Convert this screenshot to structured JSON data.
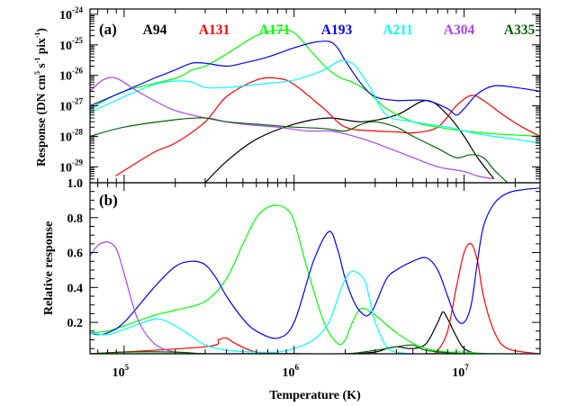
{
  "figure": {
    "xlabel": "Temperature (K)",
    "x_ticks": [
      {
        "base": "10",
        "exp": "5",
        "value": 100000
      },
      {
        "base": "10",
        "exp": "6",
        "value": 1000000
      },
      {
        "base": "10",
        "exp": "7",
        "value": 10000000
      }
    ],
    "xlim": [
      63000,
      28000000
    ],
    "x_scale": "log",
    "colors": {
      "A94": "#000000",
      "A131": "#ff0000",
      "A171": "#00ff00",
      "A193": "#0000ff",
      "A211": "#00ffff",
      "A304": "#aa44ee",
      "A335": "#006400"
    }
  },
  "chart_data": [
    {
      "type": "line",
      "panel_label": "(a)",
      "ylabel_main": "Response (DN cm",
      "ylabel_sup1": "5",
      "ylabel_mid": " s",
      "ylabel_sup2": "-1",
      "ylabel_end": " pix",
      "ylabel_sup3": "-1",
      "ylabel_close": ")",
      "y_scale": "log",
      "ylim": [
        3e-30,
        1.5e-24
      ],
      "y_ticks": [
        {
          "base": "10",
          "exp": "-24",
          "value": 1e-24
        },
        {
          "base": "10",
          "exp": "-25",
          "value": 1e-25
        },
        {
          "base": "10",
          "exp": "-26",
          "value": 1e-26
        },
        {
          "base": "10",
          "exp": "-27",
          "value": 1e-27
        },
        {
          "base": "10",
          "exp": "-28",
          "value": 1e-28
        },
        {
          "base": "10",
          "exp": "-29",
          "value": 1e-29
        }
      ],
      "legend_position": "top",
      "series": [
        {
          "name": "A94",
          "x": [
            300000,
            400000,
            600000,
            1000000,
            1600000,
            2500000,
            4000000,
            6000000,
            8000000,
            10000000,
            12000000,
            15000000
          ],
          "y": [
            3e-30,
            1.5e-29,
            8e-29,
            2.5e-28,
            4e-28,
            3e-28,
            5e-28,
            1.5e-27,
            5e-28,
            1e-28,
            2e-29,
            4e-30
          ]
        },
        {
          "name": "A131",
          "x": [
            89000,
            150000,
            200000,
            300000,
            400000,
            600000,
            800000,
            1000000,
            1500000,
            2000000,
            3000000,
            4000000,
            5000000,
            7000000,
            9000000,
            11000000,
            13000000,
            17000000,
            22000000,
            28000000
          ],
          "y": [
            5e-30,
            3e-29,
            6e-29,
            3e-28,
            2e-27,
            7e-27,
            8e-27,
            5e-27,
            8e-28,
            2e-28,
            1.5e-28,
            1.4e-28,
            1.3e-28,
            2e-28,
            1e-27,
            2.2e-27,
            1.5e-27,
            5e-28,
            2e-28,
            1e-28
          ]
        },
        {
          "name": "A171",
          "x": [
            63000,
            100000,
            200000,
            250000,
            300000,
            400000,
            600000,
            800000,
            1000000,
            1300000,
            1600000,
            1900000,
            2200000,
            2700000,
            3500000,
            5000000,
            7000000,
            10000000,
            15000000,
            28000000
          ],
          "y": [
            8e-28,
            3e-27,
            8e-27,
            1.5e-26,
            2e-26,
            5e-26,
            2e-25,
            3e-25,
            2.5e-25,
            5e-26,
            1.5e-26,
            8e-27,
            6e-27,
            3e-27,
            8e-28,
            3e-28,
            2e-28,
            1.5e-28,
            1.2e-28,
            1e-28
          ]
        },
        {
          "name": "A193",
          "x": [
            63000,
            100000,
            150000,
            200000,
            250000,
            300000,
            400000,
            500000,
            700000,
            1000000,
            1300000,
            1600000,
            1800000,
            2000000,
            2500000,
            3000000,
            4000000,
            6000000,
            8000000,
            9000000,
            10000000,
            12000000,
            15000000,
            20000000,
            28000000
          ],
          "y": [
            1e-27,
            3e-27,
            8e-27,
            1.5e-26,
            2.5e-26,
            2.5e-26,
            2e-26,
            2.5e-26,
            4e-26,
            8e-26,
            1.2e-25,
            1.3e-25,
            8e-26,
            3e-26,
            5e-27,
            2e-27,
            1.5e-27,
            1.5e-27,
            8e-28,
            5e-28,
            8e-28,
            2.5e-27,
            4.5e-27,
            4e-27,
            3e-27
          ]
        },
        {
          "name": "A211",
          "x": [
            63000,
            100000,
            150000,
            200000,
            250000,
            300000,
            400000,
            600000,
            1000000,
            1500000,
            1800000,
            2000000,
            2300000,
            2800000,
            3500000,
            5000000,
            8000000,
            12000000,
            20000000,
            28000000
          ],
          "y": [
            6e-28,
            2e-27,
            5e-27,
            6.5e-27,
            6e-27,
            4e-27,
            4e-27,
            5e-27,
            7e-27,
            1.5e-26,
            2.8e-26,
            3e-26,
            2e-26,
            4e-27,
            5e-28,
            3e-28,
            2e-28,
            1.2e-28,
            8e-29,
            6e-29
          ]
        },
        {
          "name": "A304",
          "x": [
            63000,
            75000,
            90000,
            120000,
            150000,
            200000,
            300000,
            500000,
            800000,
            1200000,
            1600000,
            2000000,
            3000000,
            5000000,
            7000000,
            10000000,
            12000000,
            15000000
          ],
          "y": [
            3e-27,
            7e-27,
            8e-27,
            3e-27,
            1.5e-27,
            7e-28,
            4e-28,
            2.5e-28,
            2e-28,
            1.5e-28,
            1.5e-28,
            1.2e-28,
            6e-29,
            2e-29,
            1e-29,
            7e-30,
            5e-30,
            4e-30
          ]
        },
        {
          "name": "A335",
          "x": [
            63000,
            100000,
            200000,
            300000,
            400000,
            600000,
            800000,
            1000000,
            1500000,
            2000000,
            2500000,
            3000000,
            4000000,
            5000000,
            7000000,
            9000000,
            11000000,
            13000000,
            15000000,
            18000000
          ],
          "y": [
            1e-28,
            2e-28,
            3.5e-28,
            4e-28,
            3e-28,
            2.5e-28,
            2.2e-28,
            2e-28,
            1.8e-28,
            1.5e-28,
            2.5e-28,
            3e-28,
            2e-28,
            1e-28,
            4e-29,
            2e-29,
            2.5e-29,
            2e-29,
            8e-30,
            3e-30
          ]
        }
      ]
    },
    {
      "type": "line",
      "panel_label": "(b)",
      "ylabel": "Relative response",
      "y_scale": "linear",
      "ylim": [
        0.02,
        1.0
      ],
      "y_ticks": [
        "0.2",
        "0.4",
        "0.6",
        "0.8",
        "1.0"
      ],
      "series": [
        {
          "name": "A94",
          "x": [
            63000,
            300000,
            1000000,
            2000000,
            3000000,
            3500000,
            4000000,
            5000000,
            6000000,
            7000000,
            7500000,
            8000000,
            9000000,
            10000000,
            12000000,
            15000000
          ],
          "y": [
            0.02,
            0.02,
            0.02,
            0.02,
            0.03,
            0.05,
            0.06,
            0.05,
            0.08,
            0.2,
            0.26,
            0.22,
            0.12,
            0.05,
            0.02,
            0.02
          ]
        },
        {
          "name": "A131",
          "x": [
            63000,
            300000,
            360000,
            400000,
            450000,
            600000,
            1000000,
            3000000,
            6000000,
            7000000,
            8000000,
            9000000,
            10000000,
            11000000,
            12000000,
            13000000,
            15000000,
            18000000,
            28000000
          ],
          "y": [
            0.02,
            0.06,
            0.1,
            0.11,
            0.08,
            0.03,
            0.02,
            0.02,
            0.02,
            0.04,
            0.15,
            0.4,
            0.6,
            0.65,
            0.55,
            0.35,
            0.15,
            0.05,
            0.02
          ]
        },
        {
          "name": "A171",
          "x": [
            63000,
            80000,
            100000,
            150000,
            200000,
            300000,
            400000,
            500000,
            600000,
            700000,
            800000,
            900000,
            1000000,
            1200000,
            1500000,
            1800000,
            2000000,
            2200000,
            2500000,
            3000000,
            4000000,
            5000000,
            6000000,
            8000000,
            10000000,
            15000000,
            28000000
          ],
          "y": [
            0.14,
            0.15,
            0.18,
            0.24,
            0.27,
            0.32,
            0.45,
            0.65,
            0.8,
            0.86,
            0.87,
            0.85,
            0.78,
            0.5,
            0.2,
            0.08,
            0.1,
            0.2,
            0.28,
            0.24,
            0.14,
            0.08,
            0.05,
            0.03,
            0.03,
            0.02,
            0.02
          ]
        },
        {
          "name": "A193",
          "x": [
            63000,
            70000,
            80000,
            100000,
            150000,
            200000,
            250000,
            300000,
            350000,
            400000,
            500000,
            600000,
            800000,
            1000000,
            1300000,
            1600000,
            1800000,
            2000000,
            2300000,
            2600000,
            2800000,
            3000000,
            3500000,
            4000000,
            5000000,
            6000000,
            7000000,
            8000000,
            9000000,
            10000000,
            11000000,
            12000000,
            13000000,
            15000000,
            18000000,
            22000000,
            28000000
          ],
          "y": [
            0.14,
            0.13,
            0.14,
            0.2,
            0.4,
            0.52,
            0.55,
            0.53,
            0.45,
            0.35,
            0.22,
            0.15,
            0.11,
            0.2,
            0.55,
            0.72,
            0.62,
            0.45,
            0.3,
            0.24,
            0.25,
            0.3,
            0.45,
            0.5,
            0.55,
            0.57,
            0.5,
            0.35,
            0.22,
            0.2,
            0.3,
            0.55,
            0.75,
            0.88,
            0.94,
            0.96,
            0.97
          ]
        },
        {
          "name": "A211",
          "x": [
            63000,
            80000,
            100000,
            130000,
            160000,
            200000,
            250000,
            300000,
            400000,
            600000,
            800000,
            1000000,
            1300000,
            1600000,
            1900000,
            2100000,
            2300000,
            2600000,
            2800000,
            3000000,
            3500000,
            4000000,
            5000000,
            6000000,
            10000000,
            28000000
          ],
          "y": [
            0.14,
            0.13,
            0.16,
            0.2,
            0.22,
            0.18,
            0.12,
            0.07,
            0.04,
            0.03,
            0.03,
            0.05,
            0.1,
            0.2,
            0.4,
            0.48,
            0.49,
            0.44,
            0.32,
            0.2,
            0.06,
            0.03,
            0.02,
            0.02,
            0.02,
            0.02
          ]
        },
        {
          "name": "A304",
          "x": [
            63000,
            70000,
            80000,
            90000,
            100000,
            120000,
            150000,
            200000,
            300000,
            400000,
            1000000,
            28000000
          ],
          "y": [
            0.58,
            0.64,
            0.66,
            0.62,
            0.48,
            0.22,
            0.08,
            0.03,
            0.02,
            0.02,
            0.02,
            0.02
          ]
        },
        {
          "name": "A335",
          "x": [
            63000,
            100000,
            200000,
            300000,
            500000,
            800000,
            1000000,
            2000000,
            3000000,
            4000000,
            5000000,
            6000000,
            10000000,
            28000000
          ],
          "y": [
            0.02,
            0.03,
            0.03,
            0.02,
            0.02,
            0.02,
            0.02,
            0.02,
            0.04,
            0.06,
            0.07,
            0.04,
            0.02,
            0.02
          ]
        }
      ]
    }
  ]
}
